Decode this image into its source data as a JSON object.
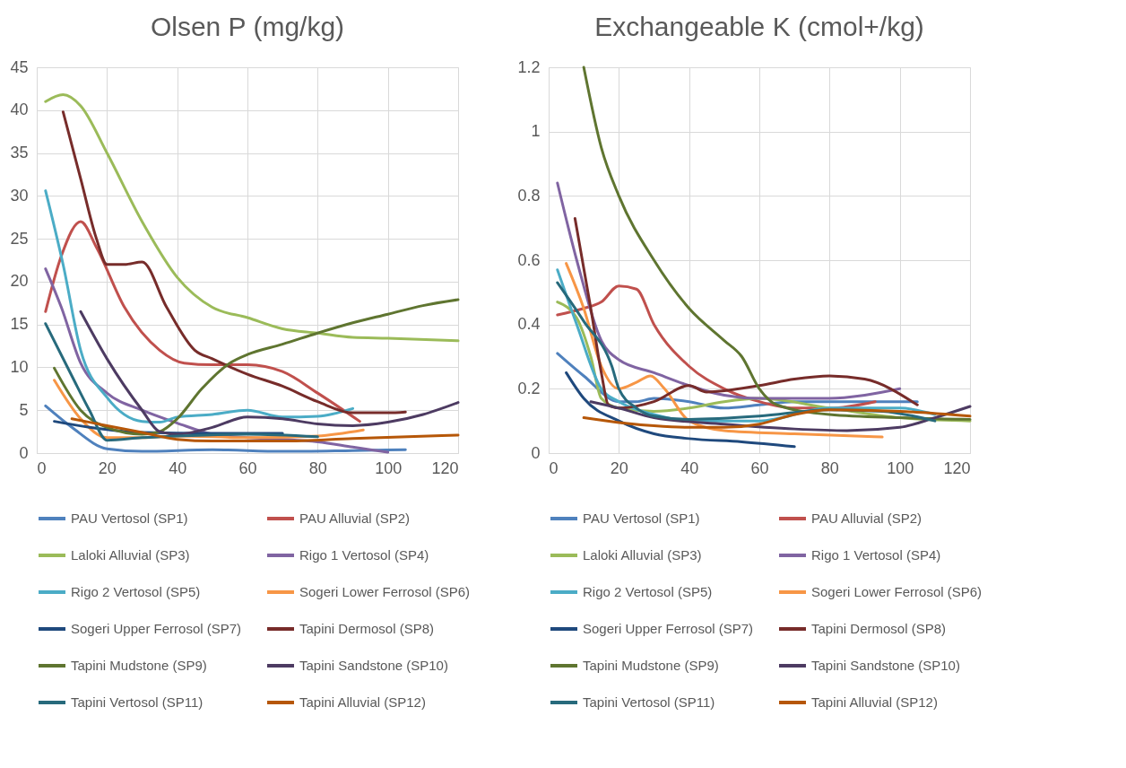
{
  "chart_data": [
    {
      "type": "line",
      "title": "Olsen P (mg/kg)",
      "xlim": [
        0,
        120
      ],
      "xticks": [
        0,
        20,
        40,
        60,
        80,
        100,
        120
      ],
      "ylim": [
        0,
        45
      ],
      "yticks": [
        0,
        5,
        10,
        15,
        20,
        25,
        30,
        35,
        40,
        45
      ],
      "grid": true,
      "legend": "bottom",
      "marker": "none",
      "line_style": "solid",
      "series": [
        {
          "name": "PAU Vertosol (SP1)",
          "color": "#4f81bd",
          "x": [
            2.5,
            10,
            20,
            30,
            50,
            70,
            90,
            105
          ],
          "values": [
            5.5,
            3,
            0.5,
            0.2,
            0.4,
            0.2,
            0.3,
            0.4
          ]
        },
        {
          "name": "PAU Alluvial (SP2)",
          "color": "#c0504d",
          "x": [
            2.5,
            7,
            12.5,
            17,
            25,
            35,
            42,
            50,
            60,
            70,
            80,
            92
          ],
          "values": [
            16.5,
            23,
            27,
            24,
            17,
            12,
            10.5,
            10.3,
            10.3,
            9.5,
            7,
            3.7
          ]
        },
        {
          "name": "Laloki Alluvial (SP3)",
          "color": "#9bbb59",
          "x": [
            2.5,
            7.5,
            12.5,
            20,
            30,
            40,
            50,
            60,
            70,
            80,
            90,
            100,
            120
          ],
          "values": [
            41,
            41.8,
            40.5,
            35,
            27,
            20.5,
            17,
            15.8,
            14.5,
            14,
            13.5,
            13.4,
            13.1
          ]
        },
        {
          "name": "Rigo 1 Vertosol (SP4)",
          "color": "#8064a2",
          "x": [
            2.5,
            7,
            12.5,
            20,
            30,
            40,
            50,
            60,
            70,
            80,
            90,
            100
          ],
          "values": [
            21.5,
            17,
            10.5,
            7,
            5,
            3.5,
            2.2,
            1.8,
            1.6,
            1.3,
            0.7,
            0.1
          ]
        },
        {
          "name": "Rigo 2 Vertosol (SP5)",
          "color": "#4bacc6",
          "x": [
            2.5,
            7.5,
            12.5,
            20,
            30,
            35,
            40,
            50,
            60,
            70,
            80,
            90
          ],
          "values": [
            30.6,
            22,
            12,
            6.5,
            3.7,
            3.6,
            4.2,
            4.5,
            5,
            4.2,
            4.3,
            5.2
          ]
        },
        {
          "name": "Sogeri Lower Ferrosol (SP6)",
          "color": "#f79646",
          "x": [
            5,
            12.5,
            20,
            30,
            40,
            60,
            80,
            93
          ],
          "values": [
            8.5,
            4,
            1.8,
            1.8,
            2,
            1.8,
            2,
            2.7
          ]
        },
        {
          "name": "Sogeri Upper Ferrosol (SP7)",
          "color": "#1f497d",
          "x": [
            5,
            15,
            30,
            50,
            70
          ],
          "values": [
            3.7,
            3,
            2.4,
            2.3,
            2.3
          ]
        },
        {
          "name": "Tapini Dermosol (SP8)",
          "color": "#772c2a",
          "x": [
            7.5,
            12.5,
            17,
            20,
            25,
            30,
            37,
            45,
            50,
            60,
            70,
            80,
            90,
            100,
            105
          ],
          "values": [
            39.8,
            32,
            25,
            22,
            22,
            22.3,
            17,
            12,
            11,
            9.2,
            7.8,
            6,
            4.7,
            4.7,
            4.8
          ]
        },
        {
          "name": "Tapini Mudstone (SP9)",
          "color": "#5f7530",
          "x": [
            5,
            12.5,
            20,
            30,
            35,
            40,
            47,
            55,
            60,
            70,
            80,
            90,
            100,
            110,
            120
          ],
          "values": [
            9.9,
            5,
            3,
            2.2,
            2.5,
            4,
            7.5,
            10.5,
            11.5,
            12.7,
            14,
            15.2,
            16.2,
            17.2,
            17.9
          ]
        },
        {
          "name": "Tapini Sandstone (SP10)",
          "color": "#4d3b62",
          "x": [
            12.5,
            20,
            30,
            35,
            40,
            50,
            60,
            70,
            80,
            90,
            100,
            110,
            120
          ],
          "values": [
            16.5,
            11,
            5,
            2.5,
            2.2,
            3,
            4.2,
            4,
            3.4,
            3.2,
            3.6,
            4.5,
            5.9
          ]
        },
        {
          "name": "Tapini Vertosol (SP11)",
          "color": "#276a7c",
          "x": [
            2.5,
            10,
            15,
            20,
            30,
            40,
            60,
            80
          ],
          "values": [
            15.1,
            9,
            5,
            1.5,
            1.8,
            2,
            2.2,
            1.9
          ]
        },
        {
          "name": "Tapini Alluvial (SP12)",
          "color": "#b65708",
          "x": [
            10,
            20,
            30,
            40,
            50,
            70,
            90,
            120
          ],
          "values": [
            4,
            3.2,
            2.4,
            1.6,
            1.4,
            1.4,
            1.7,
            2.1
          ]
        }
      ]
    },
    {
      "type": "line",
      "title": "Exchangeable K (cmol+/kg)",
      "xlim": [
        0,
        120
      ],
      "xticks": [
        0,
        20,
        40,
        60,
        80,
        100,
        120
      ],
      "ylim": [
        0,
        1.2
      ],
      "yticks": [
        0,
        0.2,
        0.4,
        0.6,
        0.8,
        1,
        1.2
      ],
      "grid": true,
      "legend": "bottom",
      "marker": "none",
      "line_style": "solid",
      "series": [
        {
          "name": "PAU Vertosol (SP1)",
          "color": "#4f81bd",
          "x": [
            2.5,
            10,
            20,
            25,
            30,
            40,
            50,
            60,
            70,
            90,
            105
          ],
          "values": [
            0.31,
            0.24,
            0.16,
            0.16,
            0.17,
            0.16,
            0.14,
            0.15,
            0.16,
            0.16,
            0.16
          ]
        },
        {
          "name": "PAU Alluvial (SP2)",
          "color": "#c0504d",
          "x": [
            2.5,
            10,
            15,
            20,
            25,
            30,
            40,
            50,
            60,
            70,
            80,
            93
          ],
          "values": [
            0.43,
            0.45,
            0.47,
            0.52,
            0.51,
            0.4,
            0.27,
            0.2,
            0.16,
            0.14,
            0.14,
            0.16
          ]
        },
        {
          "name": "Laloki Alluvial (SP3)",
          "color": "#9bbb59",
          "x": [
            2.5,
            8,
            12,
            15,
            20,
            30,
            40,
            50,
            60,
            80,
            100,
            120
          ],
          "values": [
            0.47,
            0.42,
            0.3,
            0.17,
            0.14,
            0.13,
            0.14,
            0.16,
            0.17,
            0.14,
            0.11,
            0.1
          ]
        },
        {
          "name": "Rigo 1 Vertosol (SP4)",
          "color": "#8064a2",
          "x": [
            2.5,
            8,
            15,
            20,
            30,
            40,
            50,
            60,
            80,
            90,
            100
          ],
          "values": [
            0.84,
            0.6,
            0.35,
            0.29,
            0.25,
            0.21,
            0.18,
            0.17,
            0.17,
            0.18,
            0.2
          ]
        },
        {
          "name": "Rigo 2 Vertosol (SP5)",
          "color": "#4bacc6",
          "x": [
            2.5,
            8,
            15,
            20,
            30,
            40,
            60,
            80,
            100,
            110
          ],
          "values": [
            0.57,
            0.4,
            0.2,
            0.16,
            0.12,
            0.1,
            0.1,
            0.14,
            0.14,
            0.12
          ]
        },
        {
          "name": "Sogeri Lower Ferrosol (SP6)",
          "color": "#f79646",
          "x": [
            5,
            10,
            15,
            20,
            25,
            29,
            33,
            40,
            50,
            70,
            95
          ],
          "values": [
            0.59,
            0.45,
            0.27,
            0.2,
            0.22,
            0.24,
            0.2,
            0.1,
            0.07,
            0.06,
            0.05
          ]
        },
        {
          "name": "Sogeri Upper Ferrosol (SP7)",
          "color": "#1f497d",
          "x": [
            5,
            10,
            20,
            30,
            40,
            55,
            70
          ],
          "values": [
            0.25,
            0.17,
            0.1,
            0.06,
            0.045,
            0.035,
            0.02
          ]
        },
        {
          "name": "Tapini Dermosol (SP8)",
          "color": "#772c2a",
          "x": [
            7.5,
            12,
            15,
            17,
            20,
            30,
            40,
            45,
            60,
            70,
            80,
            90,
            105
          ],
          "values": [
            0.73,
            0.45,
            0.25,
            0.15,
            0.14,
            0.16,
            0.21,
            0.19,
            0.21,
            0.23,
            0.24,
            0.23,
            0.15
          ]
        },
        {
          "name": "Tapini Mudstone (SP9)",
          "color": "#5f7530",
          "x": [
            10,
            15,
            20,
            30,
            40,
            50,
            55,
            60,
            65,
            80,
            100,
            120
          ],
          "values": [
            1.2,
            0.95,
            0.8,
            0.6,
            0.45,
            0.35,
            0.3,
            0.2,
            0.15,
            0.12,
            0.11,
            0.105
          ]
        },
        {
          "name": "Tapini Sandstone (SP10)",
          "color": "#4d3b62",
          "x": [
            12,
            20,
            30,
            50,
            70,
            85,
            100,
            110,
            120
          ],
          "values": [
            0.16,
            0.14,
            0.11,
            0.09,
            0.075,
            0.07,
            0.08,
            0.11,
            0.145
          ]
        },
        {
          "name": "Tapini Vertosol (SP11)",
          "color": "#276a7c",
          "x": [
            2.5,
            10,
            18,
            20,
            25,
            30,
            40,
            60,
            80,
            95,
            110
          ],
          "values": [
            0.53,
            0.41,
            0.27,
            0.2,
            0.14,
            0.115,
            0.105,
            0.115,
            0.135,
            0.13,
            0.1
          ]
        },
        {
          "name": "Tapini Alluvial (SP12)",
          "color": "#b65708",
          "x": [
            10,
            20,
            30,
            40,
            50,
            60,
            70,
            80,
            100,
            120
          ],
          "values": [
            0.11,
            0.095,
            0.085,
            0.08,
            0.08,
            0.09,
            0.12,
            0.135,
            0.13,
            0.115
          ]
        }
      ]
    }
  ]
}
